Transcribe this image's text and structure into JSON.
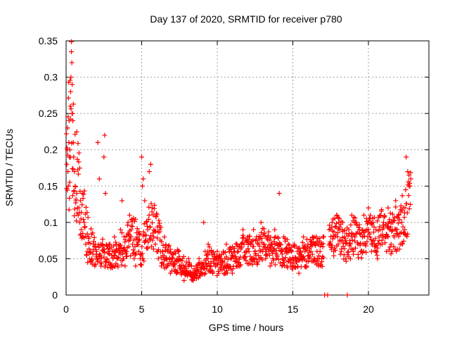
{
  "chart_data": {
    "type": "scatter",
    "title": "Day 137 of 2020, SRMTID for receiver p780",
    "xlabel": "GPS time / hours",
    "ylabel": "SRMTID / TECUs",
    "xlim": [
      0,
      24
    ],
    "ylim": [
      0,
      0.35
    ],
    "x_ticks": [
      0,
      5,
      10,
      15,
      20
    ],
    "x_tick_labels": [
      "0",
      "5",
      "10",
      "15",
      "20"
    ],
    "y_ticks": [
      0,
      0.05,
      0.1,
      0.15,
      0.2,
      0.25,
      0.3,
      0.35
    ],
    "y_tick_labels": [
      "0",
      "0.05",
      "0.1",
      "0.15",
      "0.2",
      "0.25",
      "0.3",
      "0.35"
    ],
    "grid": true,
    "marker": "plus",
    "color": "#ff0000",
    "trend": {
      "x": [
        0,
        0.2,
        0.35,
        0.5,
        0.8,
        1.0,
        1.3,
        1.6,
        2.0,
        2.5,
        3.0,
        3.5,
        4.0,
        4.5,
        5.0,
        5.5,
        6.0,
        6.5,
        7.0,
        7.5,
        8.0,
        8.5,
        9.0,
        9.5,
        10.0,
        10.5,
        11.0,
        11.5,
        12.0,
        12.5,
        13.0,
        13.5,
        14.0,
        14.5,
        15.0,
        15.5,
        16.0,
        16.5,
        17.0,
        17.5,
        18.0,
        18.5,
        19.0,
        19.5,
        20.0,
        20.5,
        21.0,
        21.5,
        22.0,
        22.5,
        22.8
      ],
      "y": [
        0.19,
        0.21,
        0.27,
        0.2,
        0.15,
        0.12,
        0.09,
        0.07,
        0.055,
        0.06,
        0.05,
        0.06,
        0.07,
        0.085,
        0.06,
        0.1,
        0.09,
        0.055,
        0.05,
        0.045,
        0.035,
        0.03,
        0.035,
        0.05,
        0.04,
        0.045,
        0.05,
        0.06,
        0.065,
        0.06,
        0.07,
        0.065,
        0.06,
        0.06,
        0.05,
        0.055,
        0.06,
        0.06,
        0.06,
        0.075,
        0.09,
        0.07,
        0.08,
        0.075,
        0.085,
        0.08,
        0.09,
        0.085,
        0.095,
        0.11,
        0.14
      ]
    },
    "points": [
      [
        0.05,
        0.18
      ],
      [
        0.08,
        0.2
      ],
      [
        0.1,
        0.23
      ],
      [
        0.12,
        0.17
      ],
      [
        0.15,
        0.15
      ],
      [
        0.18,
        0.21
      ],
      [
        0.2,
        0.24
      ],
      [
        0.22,
        0.19
      ],
      [
        0.25,
        0.2
      ],
      [
        0.28,
        0.26
      ],
      [
        0.3,
        0.28
      ],
      [
        0.32,
        0.3
      ],
      [
        0.35,
        0.335
      ],
      [
        0.38,
        0.32
      ],
      [
        0.4,
        0.29
      ],
      [
        0.42,
        0.25
      ],
      [
        0.45,
        0.24
      ],
      [
        0.48,
        0.21
      ],
      [
        0.5,
        0.19
      ],
      [
        0.55,
        0.17
      ],
      [
        0.6,
        0.15
      ],
      [
        0.65,
        0.13
      ],
      [
        0.7,
        0.14
      ],
      [
        0.75,
        0.12
      ],
      [
        0.8,
        0.11
      ],
      [
        0.85,
        0.12
      ],
      [
        0.9,
        0.1
      ],
      [
        0.95,
        0.13
      ],
      [
        1.0,
        0.09
      ],
      [
        1.1,
        0.08
      ],
      [
        1.2,
        0.1
      ],
      [
        1.3,
        0.07
      ],
      [
        1.4,
        0.06
      ],
      [
        1.5,
        0.08
      ],
      [
        1.6,
        0.06
      ],
      [
        1.7,
        0.05
      ],
      [
        1.8,
        0.07
      ],
      [
        1.9,
        0.04
      ],
      [
        2.0,
        0.06
      ],
      [
        2.1,
        0.21
      ],
      [
        2.2,
        0.16
      ],
      [
        2.3,
        0.05
      ],
      [
        2.4,
        0.07
      ],
      [
        2.5,
        0.19
      ],
      [
        2.55,
        0.22
      ],
      [
        2.6,
        0.14
      ],
      [
        2.7,
        0.05
      ],
      [
        2.8,
        0.06
      ],
      [
        2.9,
        0.07
      ],
      [
        3.0,
        0.04
      ],
      [
        3.1,
        0.05
      ],
      [
        3.2,
        0.08
      ],
      [
        3.3,
        0.06
      ],
      [
        3.4,
        0.05
      ],
      [
        3.5,
        0.07
      ],
      [
        3.6,
        0.09
      ],
      [
        3.7,
        0.13
      ],
      [
        3.8,
        0.05
      ],
      [
        3.9,
        0.04
      ],
      [
        4.0,
        0.06
      ],
      [
        4.1,
        0.1
      ],
      [
        4.2,
        0.11
      ],
      [
        4.3,
        0.09
      ],
      [
        4.4,
        0.07
      ],
      [
        4.5,
        0.05
      ],
      [
        4.6,
        0.04
      ],
      [
        4.7,
        0.08
      ],
      [
        4.8,
        0.06
      ],
      [
        4.9,
        0.05
      ],
      [
        5.0,
        0.19
      ],
      [
        5.05,
        0.15
      ],
      [
        5.1,
        0.16
      ],
      [
        5.2,
        0.13
      ],
      [
        5.3,
        0.1
      ],
      [
        5.4,
        0.09
      ],
      [
        5.5,
        0.17
      ],
      [
        5.6,
        0.18
      ],
      [
        5.7,
        0.12
      ],
      [
        5.8,
        0.08
      ],
      [
        5.9,
        0.07
      ],
      [
        6.0,
        0.06
      ],
      [
        6.1,
        0.05
      ],
      [
        6.2,
        0.09
      ],
      [
        6.3,
        0.04
      ],
      [
        6.4,
        0.06
      ],
      [
        6.5,
        0.08
      ],
      [
        6.6,
        0.05
      ],
      [
        6.7,
        0.04
      ],
      [
        6.8,
        0.06
      ],
      [
        6.9,
        0.03
      ],
      [
        7.0,
        0.05
      ],
      [
        7.1,
        0.04
      ],
      [
        7.2,
        0.06
      ],
      [
        7.3,
        0.03
      ],
      [
        7.4,
        0.05
      ],
      [
        7.5,
        0.04
      ],
      [
        7.6,
        0.03
      ],
      [
        7.7,
        0.05
      ],
      [
        7.8,
        0.02
      ],
      [
        7.9,
        0.04
      ],
      [
        8.0,
        0.03
      ],
      [
        8.1,
        0.05
      ],
      [
        8.2,
        0.03
      ],
      [
        8.3,
        0.04
      ],
      [
        8.4,
        0.02
      ],
      [
        8.5,
        0.03
      ],
      [
        8.6,
        0.04
      ],
      [
        8.7,
        0.03
      ],
      [
        8.8,
        0.05
      ],
      [
        8.9,
        0.03
      ],
      [
        9.0,
        0.04
      ],
      [
        9.1,
        0.1
      ],
      [
        9.2,
        0.06
      ],
      [
        9.3,
        0.05
      ],
      [
        9.4,
        0.07
      ],
      [
        9.5,
        0.04
      ],
      [
        9.6,
        0.06
      ],
      [
        9.7,
        0.03
      ],
      [
        9.8,
        0.05
      ],
      [
        9.9,
        0.04
      ],
      [
        10.0,
        0.06
      ],
      [
        10.1,
        0.03
      ],
      [
        10.2,
        0.05
      ],
      [
        10.3,
        0.04
      ],
      [
        10.4,
        0.06
      ],
      [
        10.5,
        0.05
      ],
      [
        10.6,
        0.07
      ],
      [
        10.7,
        0.04
      ],
      [
        10.8,
        0.06
      ],
      [
        10.9,
        0.05
      ],
      [
        11.0,
        0.03
      ],
      [
        11.1,
        0.06
      ],
      [
        11.2,
        0.05
      ],
      [
        11.3,
        0.07
      ],
      [
        11.4,
        0.06
      ],
      [
        11.5,
        0.04
      ],
      [
        11.6,
        0.07
      ],
      [
        11.7,
        0.09
      ],
      [
        11.8,
        0.05
      ],
      [
        11.9,
        0.06
      ],
      [
        12.0,
        0.08
      ],
      [
        12.1,
        0.06
      ],
      [
        12.2,
        0.07
      ],
      [
        12.3,
        0.05
      ],
      [
        12.4,
        0.09
      ],
      [
        12.5,
        0.06
      ],
      [
        12.6,
        0.08
      ],
      [
        12.7,
        0.07
      ],
      [
        12.8,
        0.05
      ],
      [
        12.9,
        0.1
      ],
      [
        13.0,
        0.06
      ],
      [
        13.1,
        0.07
      ],
      [
        13.2,
        0.05
      ],
      [
        13.3,
        0.08
      ],
      [
        13.4,
        0.06
      ],
      [
        13.5,
        0.04
      ],
      [
        13.6,
        0.07
      ],
      [
        13.7,
        0.06
      ],
      [
        13.8,
        0.09
      ],
      [
        13.9,
        0.05
      ],
      [
        14.0,
        0.07
      ],
      [
        14.1,
        0.14
      ],
      [
        14.2,
        0.06
      ],
      [
        14.3,
        0.05
      ],
      [
        14.4,
        0.08
      ],
      [
        14.5,
        0.06
      ],
      [
        14.6,
        0.04
      ],
      [
        14.7,
        0.07
      ],
      [
        14.8,
        0.05
      ],
      [
        14.9,
        0.06
      ],
      [
        15.0,
        0.04
      ],
      [
        15.1,
        0.07
      ],
      [
        15.2,
        0.05
      ],
      [
        15.3,
        0.06
      ],
      [
        15.4,
        0.03
      ],
      [
        15.5,
        0.06
      ],
      [
        15.6,
        0.05
      ],
      [
        15.7,
        0.08
      ],
      [
        15.8,
        0.06
      ],
      [
        15.9,
        0.04
      ],
      [
        16.0,
        0.07
      ],
      [
        16.1,
        0.05
      ],
      [
        16.2,
        0.06
      ],
      [
        16.3,
        0.08
      ],
      [
        16.4,
        0.05
      ],
      [
        16.5,
        0.07
      ],
      [
        16.6,
        0.06
      ],
      [
        16.7,
        0.04
      ],
      [
        16.8,
        0.06
      ],
      [
        16.9,
        0.05
      ],
      [
        17.0,
        0.08
      ],
      [
        17.1,
        0.0
      ],
      [
        17.3,
        0.0
      ],
      [
        17.4,
        0.09
      ],
      [
        17.5,
        0.07
      ],
      [
        17.6,
        0.1
      ],
      [
        17.7,
        0.06
      ],
      [
        17.8,
        0.08
      ],
      [
        17.9,
        0.11
      ],
      [
        18.0,
        0.07
      ],
      [
        18.1,
        0.09
      ],
      [
        18.2,
        0.06
      ],
      [
        18.3,
        0.1
      ],
      [
        18.4,
        0.08
      ],
      [
        18.5,
        0.05
      ],
      [
        18.6,
        0.0
      ],
      [
        18.7,
        0.09
      ],
      [
        18.8,
        0.07
      ],
      [
        18.9,
        0.11
      ],
      [
        19.0,
        0.06
      ],
      [
        19.1,
        0.08
      ],
      [
        19.2,
        0.1
      ],
      [
        19.3,
        0.07
      ],
      [
        19.4,
        0.09
      ],
      [
        19.5,
        0.06
      ],
      [
        19.6,
        0.08
      ],
      [
        19.7,
        0.11
      ],
      [
        19.8,
        0.07
      ],
      [
        19.9,
        0.09
      ],
      [
        20.0,
        0.12
      ],
      [
        20.1,
        0.08
      ],
      [
        20.2,
        0.06
      ],
      [
        20.3,
        0.1
      ],
      [
        20.4,
        0.07
      ],
      [
        20.5,
        0.09
      ],
      [
        20.6,
        0.05
      ],
      [
        20.7,
        0.08
      ],
      [
        20.8,
        0.11
      ],
      [
        20.9,
        0.07
      ],
      [
        21.0,
        0.1
      ],
      [
        21.1,
        0.08
      ],
      [
        21.2,
        0.06
      ],
      [
        21.3,
        0.12
      ],
      [
        21.4,
        0.09
      ],
      [
        21.5,
        0.07
      ],
      [
        21.6,
        0.1
      ],
      [
        21.7,
        0.08
      ],
      [
        21.8,
        0.13
      ],
      [
        21.9,
        0.09
      ],
      [
        22.0,
        0.11
      ],
      [
        22.1,
        0.07
      ],
      [
        22.2,
        0.1
      ],
      [
        22.3,
        0.12
      ],
      [
        22.4,
        0.09
      ],
      [
        22.5,
        0.19
      ],
      [
        22.6,
        0.17
      ],
      [
        22.7,
        0.15
      ],
      [
        22.8,
        0.16
      ]
    ]
  }
}
